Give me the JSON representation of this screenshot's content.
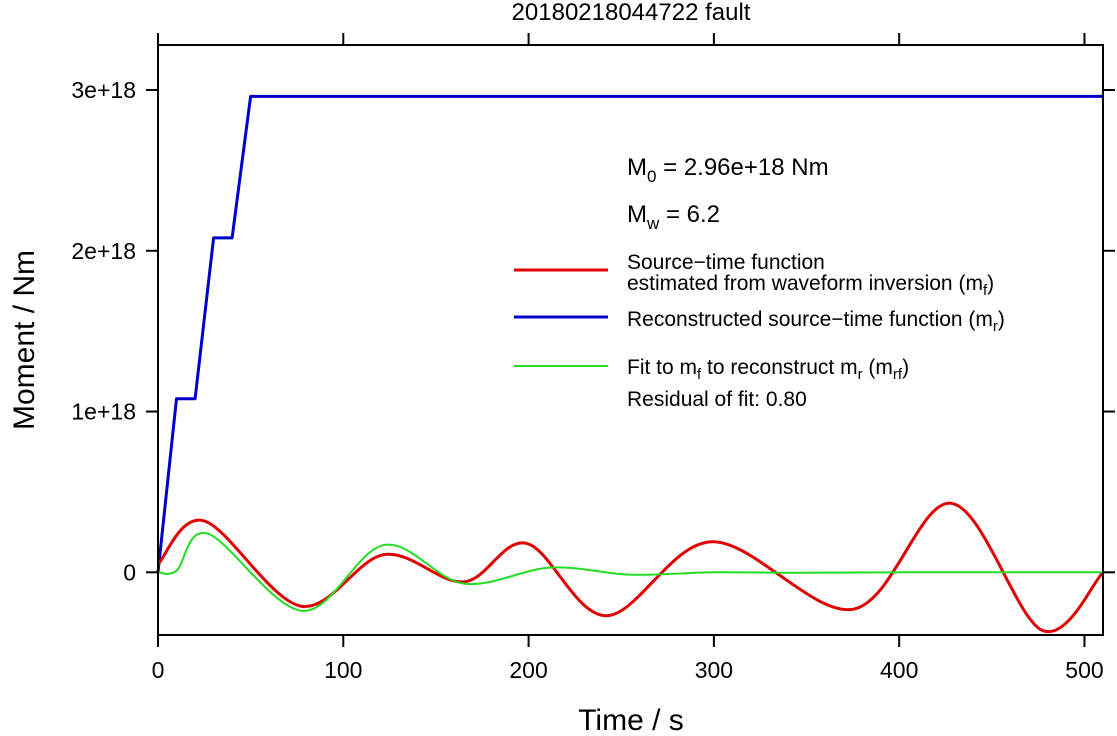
{
  "chart_data": {
    "type": "line",
    "title": "20180218044722 fault",
    "xlabel": "Time / s",
    "ylabel": "Moment / Nm",
    "xlim": [
      0,
      510
    ],
    "ylim": [
      -3.9e+17,
      3.28e+18
    ],
    "x_ticks": [
      0,
      100,
      200,
      300,
      400,
      500
    ],
    "x_tick_labels": [
      "0",
      "100",
      "200",
      "300",
      "400",
      "500"
    ],
    "y_ticks": [
      0,
      1e+18,
      2e+18,
      3e+18
    ],
    "y_tick_labels": [
      "0",
      "1e+18",
      "2e+18",
      "3e+18"
    ],
    "grid": false,
    "legend_position": "right",
    "annotations": {
      "m0": {
        "prefix": "M",
        "sub": "0",
        "text": " = 2.96e+18 Nm"
      },
      "mw": {
        "prefix": "M",
        "sub": "w",
        "text": " = 6.2"
      },
      "residual": "Residual of fit: 0.80"
    },
    "legend": [
      {
        "lines": [
          "Source−time function",
          "estimated from waveform inversion (m"
        ],
        "sub": "f",
        "suffix": ")",
        "color": "#e00000"
      },
      {
        "lines": [
          "Reconstructed source−time function (m"
        ],
        "sub": "r",
        "suffix": ")",
        "color": "#0000cc"
      },
      {
        "lines": [
          "Fit to m"
        ],
        "sub": "f",
        "mid": " to reconstruct m",
        "sub2": "r",
        "mid2": " (m",
        "sub3": "rf",
        "suffix": ")",
        "color": "#22dd22"
      }
    ],
    "series": [
      {
        "color": "#0000cc",
        "x": [
          0,
          10,
          20,
          30,
          40,
          50,
          510
        ],
        "y": [
          0,
          1.08e+18,
          1.08e+18,
          2.08e+18,
          2.08e+18,
          2.96e+18,
          2.96e+18
        ],
        "step": true
      },
      {
        "color": "#e00000",
        "x": [
          0,
          25,
          77,
          122,
          165,
          199,
          242,
          299,
          375,
          428,
          477,
          510
        ],
        "y": [
          5e+16,
          3.2e+17,
          -2.1e+17,
          1.1e+17,
          -6e+16,
          1.8e+17,
          -2.7e+17,
          1.9e+17,
          -2.3e+17,
          4.3e+17,
          -3.6e+17,
          0
        ],
        "smooth": true
      },
      {
        "color": "#22dd22",
        "x": [
          0,
          10,
          27,
          78,
          122,
          165,
          212,
          255,
          300,
          345,
          400,
          450,
          510
        ],
        "y": [
          0,
          1e+16,
          2.4e+17,
          -2.4e+17,
          1.7e+17,
          -7e+16,
          3e+16,
          -1.5e+16,
          0,
          -3000000000000000.0,
          0,
          0,
          0
        ],
        "smooth": true
      }
    ]
  }
}
